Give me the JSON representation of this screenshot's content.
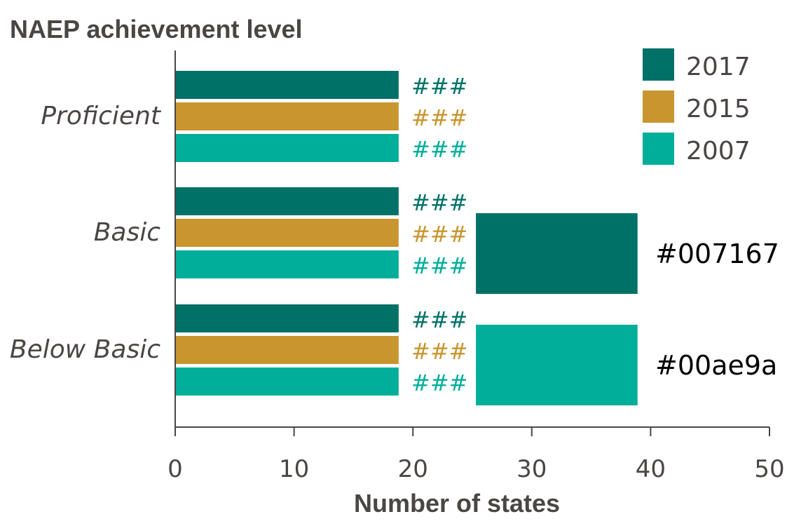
{
  "chart_data": {
    "type": "bar",
    "orientation": "horizontal",
    "title": "NAEP achievement level",
    "xlabel": "Number of states",
    "ylabel": "",
    "categories": [
      "Proficient",
      "Basic",
      "Below Basic"
    ],
    "series": [
      {
        "name": "2017",
        "color": "#007167",
        "values": [
          18.8,
          18.8,
          18.8
        ],
        "labels": [
          "###",
          "###",
          "###"
        ]
      },
      {
        "name": "2015",
        "color": "#c8952e",
        "values": [
          18.8,
          18.8,
          18.8
        ],
        "labels": [
          "###",
          "###",
          "###"
        ]
      },
      {
        "name": "2007",
        "color": "#00ae9a",
        "values": [
          18.8,
          18.8,
          18.8
        ],
        "labels": [
          "###",
          "###",
          "###"
        ]
      }
    ],
    "xlim": [
      0,
      50
    ],
    "xticks": [
      0,
      10,
      20,
      30,
      40,
      50
    ],
    "grid": false,
    "legend": "top-right",
    "color_swatches": [
      {
        "color": "#007167",
        "label": "#007167"
      },
      {
        "color": "#00ae9a",
        "label": "#00ae9a"
      }
    ],
    "swatch_range": [
      25.3,
      38.9
    ]
  }
}
